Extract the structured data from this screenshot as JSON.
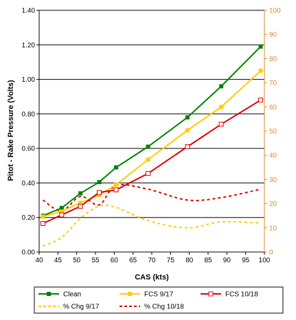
{
  "chart_data": {
    "type": "line",
    "xlabel": "CAS (kts)",
    "ylabel": "Pitot - Rake Pressure (Volts)",
    "xlim": [
      40,
      100
    ],
    "ylim": [
      0.0,
      1.4
    ],
    "y2lim": [
      0,
      100
    ],
    "xticks": [
      "40",
      "45",
      "50",
      "55",
      "60",
      "65",
      "70",
      "75",
      "80",
      "85",
      "90",
      "95",
      "100"
    ],
    "yticks": [
      "0.00",
      "0.20",
      "0.40",
      "0.60",
      "0.80",
      "1.00",
      "1.20",
      "1.40"
    ],
    "y2ticks": [
      "0",
      "10",
      "20",
      "30",
      "40",
      "50",
      "60",
      "70",
      "80",
      "90",
      "100"
    ],
    "grid": "horizontal",
    "legend_position": "bottom",
    "colors": {
      "green": "#008000",
      "yellow": "#ffcc00",
      "red": "#dd0000",
      "axis2": "#d98b2b"
    },
    "series": [
      {
        "name": "Clean",
        "axis": "left",
        "style": "solid",
        "color": "#008000",
        "marker": "filled-square",
        "x": [
          41,
          46,
          51,
          56,
          60.5,
          69,
          79.5,
          88.5,
          99
        ],
        "y": [
          0.21,
          0.255,
          0.34,
          0.405,
          0.49,
          0.61,
          0.78,
          0.96,
          1.19
        ]
      },
      {
        "name": "FCS 9/17",
        "axis": "left",
        "style": "solid",
        "color": "#ffcc00",
        "marker": "filled-square",
        "x": [
          41,
          46,
          51,
          56,
          60.5,
          69,
          79.5,
          88.5,
          99
        ],
        "y": [
          0.205,
          0.235,
          0.285,
          0.33,
          0.39,
          0.535,
          0.705,
          0.84,
          1.05
        ]
      },
      {
        "name": "FCS 10/18",
        "axis": "left",
        "style": "solid",
        "color": "#dd0000",
        "marker": "open-square",
        "x": [
          41,
          46,
          51,
          56,
          60.5,
          69,
          79.5,
          88.5,
          99
        ],
        "y": [
          0.165,
          0.215,
          0.265,
          0.345,
          0.36,
          0.455,
          0.61,
          0.74,
          0.88
        ]
      },
      {
        "name": "% Chg 9/17",
        "axis": "right",
        "style": "dashed",
        "color": "#ffcc00",
        "marker": "none",
        "x": [
          41,
          46,
          51,
          56,
          60.5,
          69,
          79.5,
          88.5,
          99
        ],
        "y": [
          2.5,
          6,
          14,
          19,
          18.5,
          13,
          10,
          12.5,
          12
        ]
      },
      {
        "name": "% Chg 10/18",
        "axis": "right",
        "style": "dashed",
        "color": "#dd0000",
        "marker": "none",
        "x": [
          41,
          46,
          51,
          56,
          60.5,
          69,
          79.5,
          88.5,
          99
        ],
        "y": [
          21.5,
          17,
          23,
          19.5,
          27.5,
          26,
          21.5,
          22.5,
          26
        ]
      }
    ]
  }
}
